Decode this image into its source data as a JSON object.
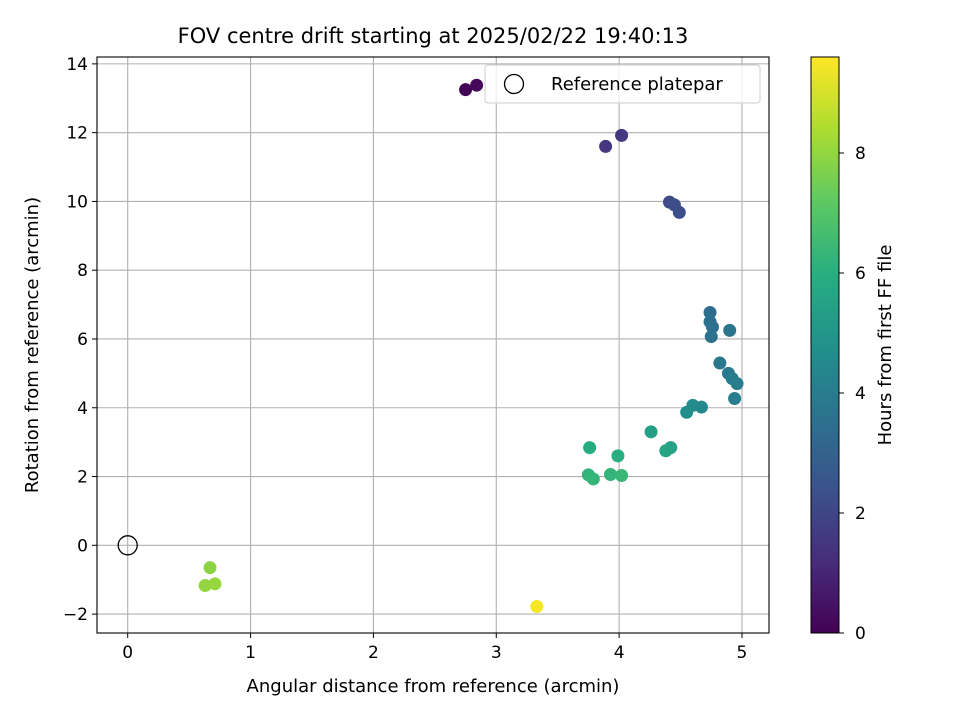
{
  "chart_data": {
    "type": "scatter",
    "title": "FOV centre drift starting at 2025/02/22 19:40:13",
    "xlabel": "Angular distance from reference (arcmin)",
    "ylabel": "Rotation from reference (arcmin)",
    "xlim": [
      -0.25,
      5.22
    ],
    "ylim": [
      -2.55,
      14.2
    ],
    "xticks": [
      0,
      1,
      2,
      3,
      4,
      5
    ],
    "yticks": [
      -2,
      0,
      2,
      4,
      6,
      8,
      10,
      12,
      14
    ],
    "grid": true,
    "legend": {
      "position": "top-right",
      "entries": [
        "Reference platepar"
      ]
    },
    "reference_point": {
      "x": 0,
      "y": 0
    },
    "colorbar": {
      "label": "Hours from first FF file",
      "range": [
        0,
        9.6
      ],
      "ticks": [
        0,
        2,
        4,
        6,
        8
      ],
      "colormap": "viridis"
    },
    "points": [
      {
        "x": 2.75,
        "y": 13.25,
        "c": 0.1
      },
      {
        "x": 2.84,
        "y": 13.38,
        "c": 0.2
      },
      {
        "x": 3.89,
        "y": 11.6,
        "c": 1.5
      },
      {
        "x": 4.02,
        "y": 11.92,
        "c": 1.6
      },
      {
        "x": 4.41,
        "y": 9.98,
        "c": 2.2
      },
      {
        "x": 4.45,
        "y": 9.9,
        "c": 2.25
      },
      {
        "x": 4.49,
        "y": 9.68,
        "c": 2.3
      },
      {
        "x": 4.74,
        "y": 6.77,
        "c": 3.4
      },
      {
        "x": 4.74,
        "y": 6.5,
        "c": 3.5
      },
      {
        "x": 4.76,
        "y": 6.35,
        "c": 3.55
      },
      {
        "x": 4.75,
        "y": 6.07,
        "c": 3.6
      },
      {
        "x": 4.9,
        "y": 6.25,
        "c": 3.7
      },
      {
        "x": 4.82,
        "y": 5.3,
        "c": 3.8
      },
      {
        "x": 4.89,
        "y": 5.0,
        "c": 3.9
      },
      {
        "x": 4.92,
        "y": 4.85,
        "c": 4.0
      },
      {
        "x": 4.96,
        "y": 4.7,
        "c": 4.05
      },
      {
        "x": 4.94,
        "y": 4.27,
        "c": 4.1
      },
      {
        "x": 4.6,
        "y": 4.07,
        "c": 4.6
      },
      {
        "x": 4.67,
        "y": 4.02,
        "c": 4.5
      },
      {
        "x": 4.55,
        "y": 3.87,
        "c": 4.7
      },
      {
        "x": 4.26,
        "y": 3.3,
        "c": 5.4
      },
      {
        "x": 4.42,
        "y": 2.84,
        "c": 5.5
      },
      {
        "x": 4.38,
        "y": 2.75,
        "c": 5.6
      },
      {
        "x": 3.76,
        "y": 2.84,
        "c": 5.9
      },
      {
        "x": 3.99,
        "y": 2.6,
        "c": 6.0
      },
      {
        "x": 3.75,
        "y": 2.05,
        "c": 6.2
      },
      {
        "x": 3.79,
        "y": 1.93,
        "c": 6.3
      },
      {
        "x": 3.93,
        "y": 2.06,
        "c": 6.25
      },
      {
        "x": 4.02,
        "y": 2.03,
        "c": 6.4
      },
      {
        "x": 0.67,
        "y": -0.65,
        "c": 7.9
      },
      {
        "x": 0.63,
        "y": -1.17,
        "c": 8.0
      },
      {
        "x": 0.71,
        "y": -1.12,
        "c": 8.05
      },
      {
        "x": 3.33,
        "y": -1.78,
        "c": 9.5
      }
    ]
  }
}
